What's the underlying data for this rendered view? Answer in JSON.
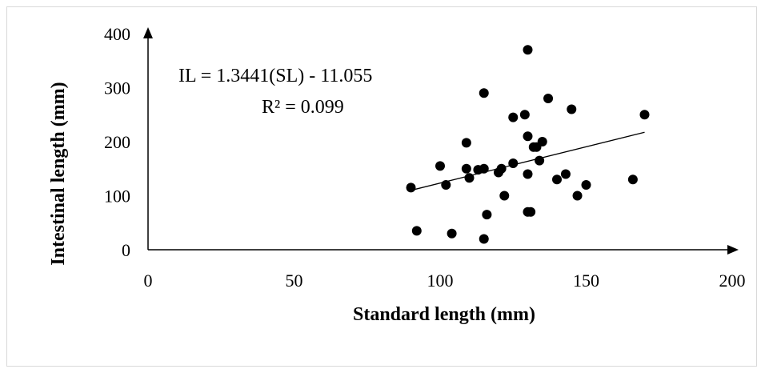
{
  "chart_data": {
    "type": "scatter",
    "xlabel": "Standard length (mm)",
    "ylabel": "Intestinal length (mm)",
    "xlim": [
      0,
      200
    ],
    "ylim": [
      0,
      400
    ],
    "x_ticks": [
      0,
      50,
      100,
      150,
      200
    ],
    "y_ticks": [
      0,
      100,
      200,
      300,
      400
    ],
    "grid": false,
    "legend": "none",
    "marker_color": "#000000",
    "points": [
      {
        "x": 90,
        "y": 115
      },
      {
        "x": 92,
        "y": 35
      },
      {
        "x": 100,
        "y": 155
      },
      {
        "x": 102,
        "y": 120
      },
      {
        "x": 104,
        "y": 30
      },
      {
        "x": 109,
        "y": 198
      },
      {
        "x": 109,
        "y": 150
      },
      {
        "x": 110,
        "y": 133
      },
      {
        "x": 113,
        "y": 148
      },
      {
        "x": 115,
        "y": 150
      },
      {
        "x": 115,
        "y": 290
      },
      {
        "x": 115,
        "y": 20
      },
      {
        "x": 116,
        "y": 65
      },
      {
        "x": 120,
        "y": 143
      },
      {
        "x": 121,
        "y": 150
      },
      {
        "x": 122,
        "y": 100
      },
      {
        "x": 125,
        "y": 245
      },
      {
        "x": 125,
        "y": 160
      },
      {
        "x": 129,
        "y": 250
      },
      {
        "x": 130,
        "y": 370
      },
      {
        "x": 130,
        "y": 210
      },
      {
        "x": 130,
        "y": 140
      },
      {
        "x": 130,
        "y": 70
      },
      {
        "x": 131,
        "y": 70
      },
      {
        "x": 132,
        "y": 190
      },
      {
        "x": 133,
        "y": 190
      },
      {
        "x": 134,
        "y": 165
      },
      {
        "x": 135,
        "y": 200
      },
      {
        "x": 137,
        "y": 280
      },
      {
        "x": 140,
        "y": 130
      },
      {
        "x": 143,
        "y": 140
      },
      {
        "x": 145,
        "y": 260
      },
      {
        "x": 147,
        "y": 100
      },
      {
        "x": 150,
        "y": 120
      },
      {
        "x": 166,
        "y": 130
      },
      {
        "x": 170,
        "y": 250
      }
    ],
    "trendline": {
      "slope": 1.3441,
      "intercept": -11.055,
      "x_range": [
        90,
        170
      ],
      "equation": "IL = 1.3441(SL) - 11.055",
      "r_squared": "R² = 0.099"
    }
  }
}
